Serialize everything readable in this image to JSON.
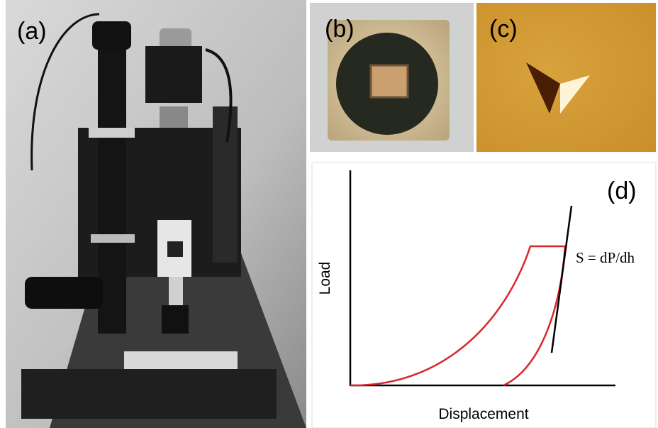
{
  "panels": [
    {
      "label": "(a)"
    },
    {
      "label": "(b)"
    },
    {
      "label": "(c)"
    },
    {
      "label": "(d)",
      "y_axis_label": "Load",
      "x_axis_label": "Displacement",
      "annotation": "S = dP/dh"
    }
  ]
}
